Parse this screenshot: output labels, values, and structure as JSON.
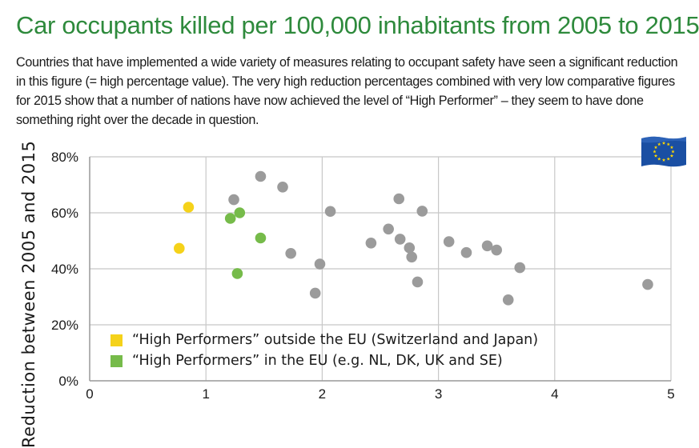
{
  "title": "Car occupants killed per 100,000 inhabitants from 2005 to 2015",
  "subtitle": "Countries that have implemented a wide variety of measures relating to occupant safety have seen a significant reduction in this figure (= high percentage value). The very high reduction percentages combined with very low comparative figures for 2015 show that a number of nations have now achieved the level of “High Performer” – they seem to have done something right over the decade in question.",
  "flag_icon": "eu-flag-icon",
  "colors": {
    "title": "#2e8a3c",
    "high_outside_eu": "#f5d21a",
    "high_eu": "#76bb4a",
    "other": "#9b9b9b",
    "flag_blue": "#1a4fa3",
    "flag_star": "#ffd700"
  },
  "chart_data": {
    "type": "scatter",
    "ylabel": "Reduction between 2005 and 2015",
    "xlabel": "",
    "xlim": [
      0,
      5
    ],
    "ylim": [
      0,
      80
    ],
    "x_ticks": [
      0,
      1,
      2,
      3,
      4,
      5
    ],
    "y_ticks": [
      0,
      20,
      40,
      60,
      80
    ],
    "y_tick_labels": [
      "0%",
      "20%",
      "40%",
      "60%",
      "80%"
    ],
    "grid": true,
    "legend_position": "bottom-left",
    "legend": [
      {
        "label": "“High Performers” outside the EU (Switzerland and Japan)",
        "color": "#f5d21a"
      },
      {
        "label": "“High Performers” in the EU (e.g. NL, DK, UK and SE)",
        "color": "#76bb4a"
      }
    ],
    "series": [
      {
        "name": "“High Performers” outside the EU (Switzerland and Japan)",
        "color": "#f5d21a",
        "points": [
          [
            0.85,
            62
          ],
          [
            0.77,
            47.3
          ]
        ]
      },
      {
        "name": "“High Performers” in the EU (e.g. NL, DK, UK and SE)",
        "color": "#76bb4a",
        "points": [
          [
            1.21,
            58
          ],
          [
            1.29,
            60
          ],
          [
            1.47,
            51
          ],
          [
            1.27,
            38.3
          ]
        ]
      },
      {
        "color": "#9b9b9b",
        "points": [
          [
            1.24,
            64.7
          ],
          [
            1.47,
            73
          ],
          [
            1.66,
            69.2
          ],
          [
            1.73,
            45.5
          ],
          [
            1.94,
            31.3
          ],
          [
            1.98,
            41.7
          ],
          [
            2.07,
            60.5
          ],
          [
            2.42,
            49.2
          ],
          [
            2.57,
            54.2
          ],
          [
            2.66,
            65
          ],
          [
            2.67,
            50.6
          ],
          [
            2.75,
            47.5
          ],
          [
            2.77,
            44.2
          ],
          [
            2.82,
            35.3
          ],
          [
            2.86,
            60.6
          ],
          [
            3.09,
            49.7
          ],
          [
            3.24,
            45.8
          ],
          [
            3.42,
            48.2
          ],
          [
            3.5,
            46.7
          ],
          [
            3.6,
            28.9
          ],
          [
            3.7,
            40.4
          ],
          [
            4.8,
            34.4
          ]
        ]
      }
    ]
  }
}
